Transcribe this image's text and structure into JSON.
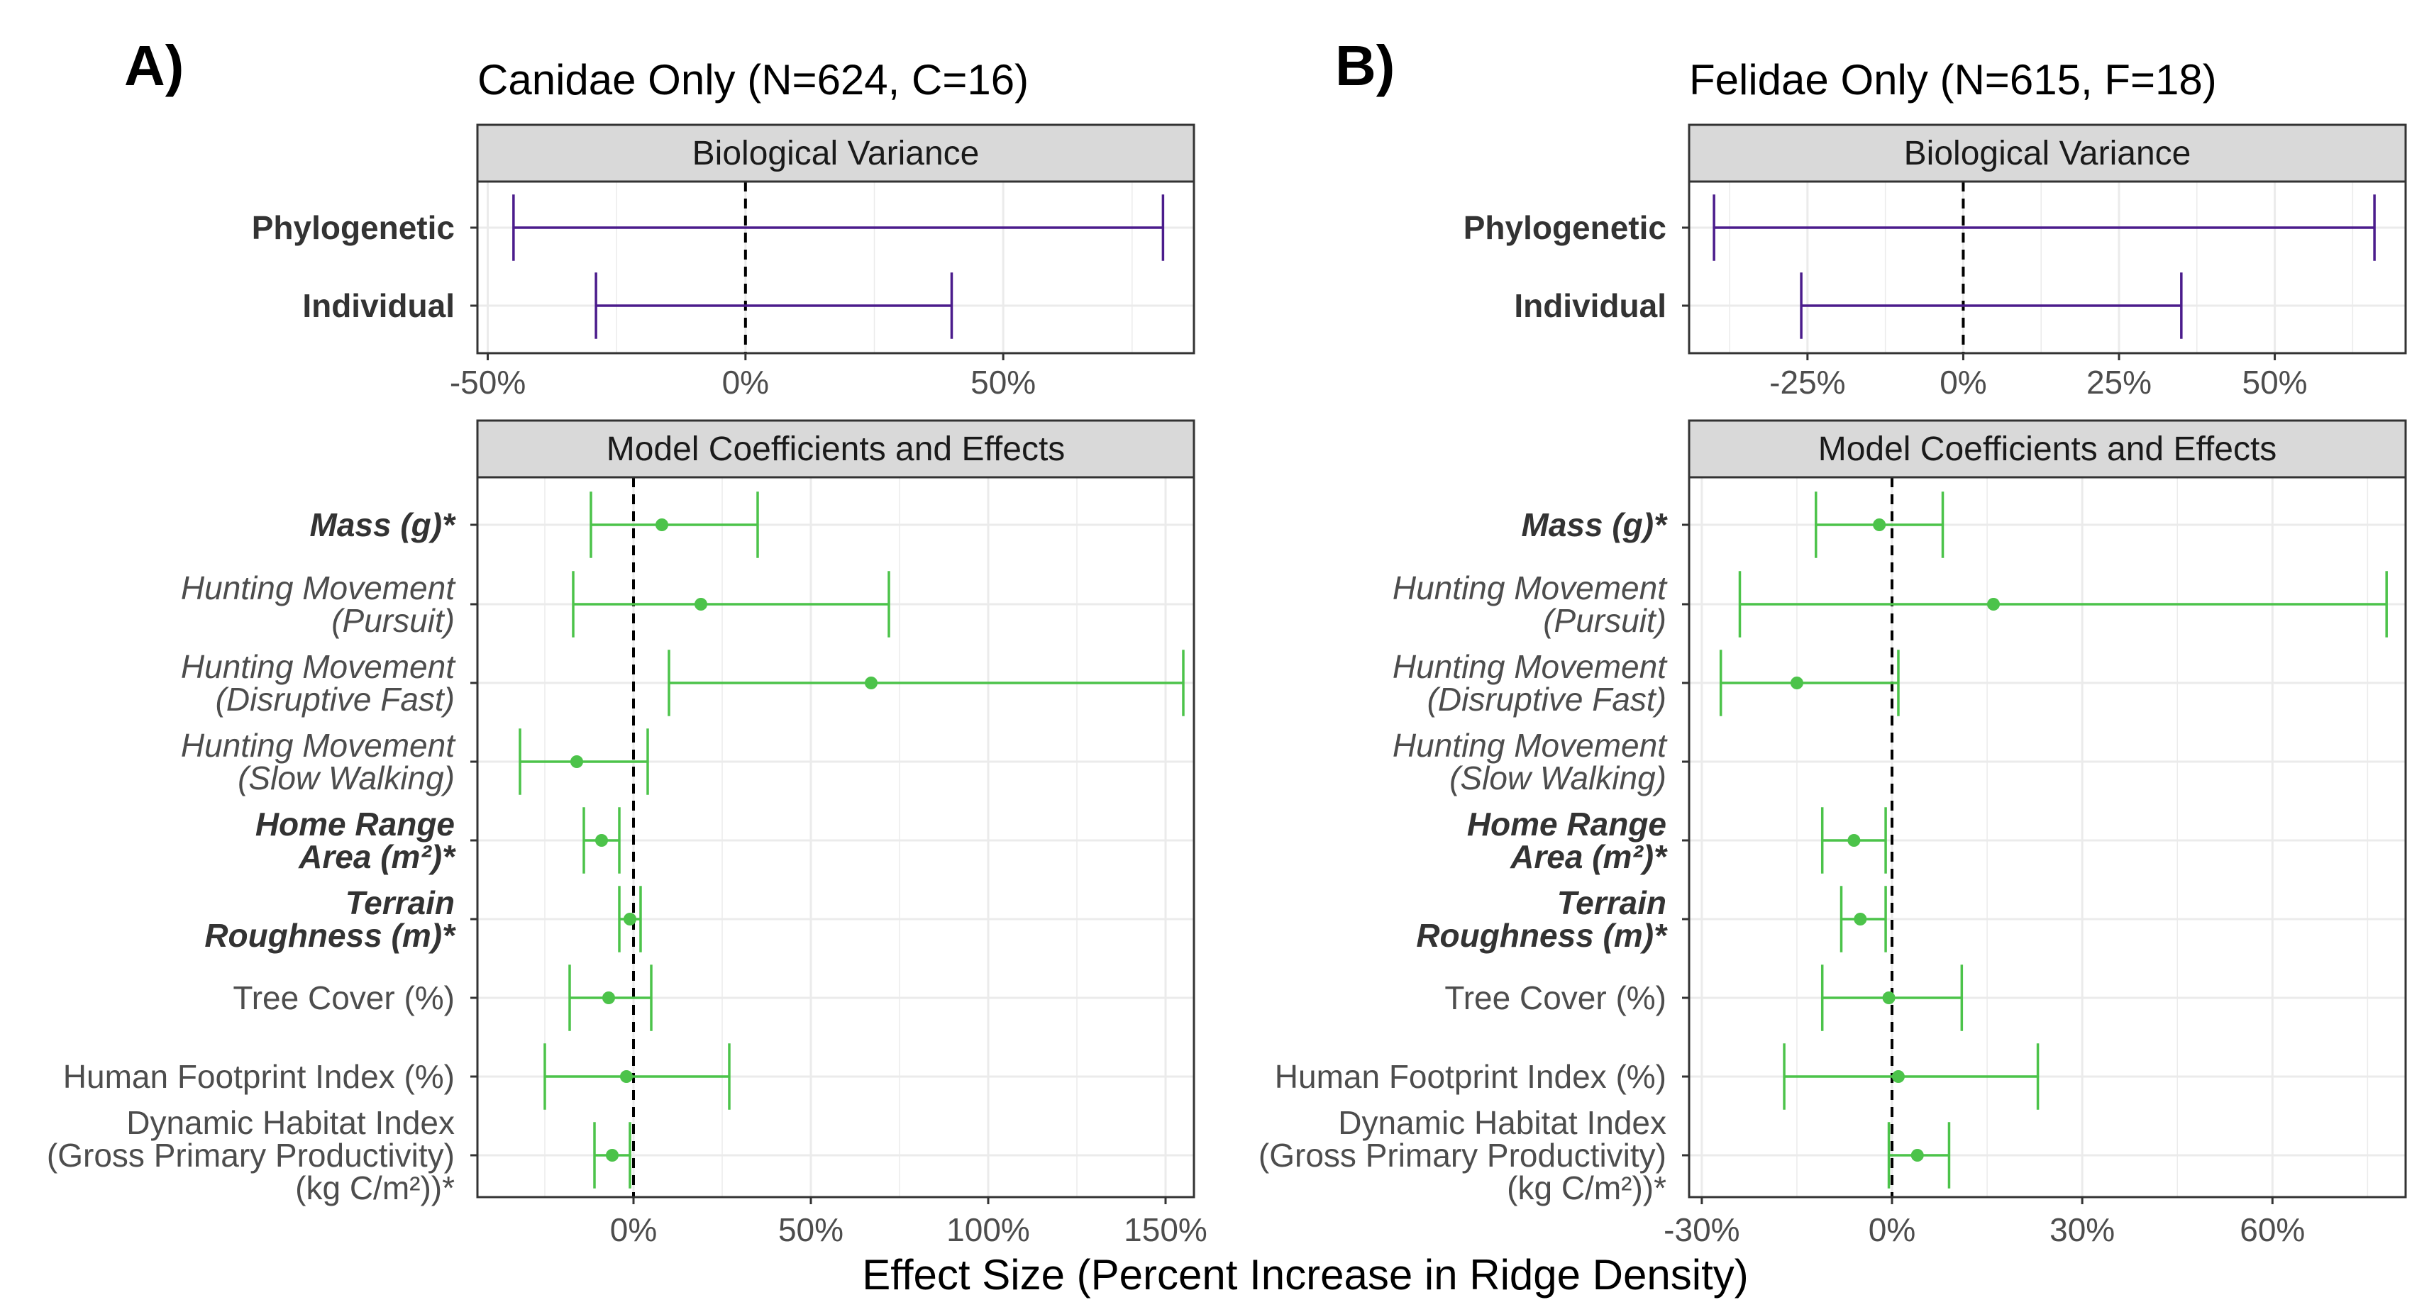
{
  "figure": {
    "xlabel": "Effect Size (Percent Increase in Ridge Density)"
  },
  "colors": {
    "variance": "#4b1c8c",
    "effects": "#4cc34a",
    "strip_fill": "#d9d9d9",
    "grid": "#ebebeb",
    "zero_line": "#000000"
  },
  "chart_data": [
    {
      "type": "interval",
      "panel": "A)",
      "title": "Canidae Only (N=624, C=16)",
      "facet": "Biological Variance",
      "xlim": [
        -52,
        87
      ],
      "xticks": [
        -50,
        0,
        50
      ],
      "tick_labels": [
        "-50%",
        "0%",
        "50%"
      ],
      "reference_line": 0,
      "rows": [
        {
          "label": [
            "Phylogenetic"
          ],
          "style": "bold",
          "low": -45,
          "high": 81
        },
        {
          "label": [
            "Individual"
          ],
          "style": "bold",
          "low": -29,
          "high": 40
        }
      ]
    },
    {
      "type": "interval",
      "panel": "A)",
      "facet": "Model Coefficients and Effects",
      "xlim": [
        -44,
        158
      ],
      "xticks": [
        0,
        50,
        100,
        150
      ],
      "tick_labels": [
        "0%",
        "50%",
        "100%",
        "150%"
      ],
      "reference_line": 0,
      "rows": [
        {
          "label": [
            "Mass (g)*"
          ],
          "style": "bold-italic",
          "low": -12,
          "estimate": 8,
          "high": 35
        },
        {
          "label": [
            "Hunting Movement",
            "(Pursuit)"
          ],
          "style": "italic",
          "low": -17,
          "estimate": 19,
          "high": 72
        },
        {
          "label": [
            "Hunting Movement",
            "(Disruptive Fast)"
          ],
          "style": "italic",
          "low": 10,
          "estimate": 67,
          "high": 155
        },
        {
          "label": [
            "Hunting Movement",
            "(Slow Walking)"
          ],
          "style": "italic",
          "low": -32,
          "estimate": -16,
          "high": 4
        },
        {
          "label": [
            "Home Range",
            "Area (m²)*"
          ],
          "style": "bold-italic",
          "low": -14,
          "estimate": -9,
          "high": -4
        },
        {
          "label": [
            "Terrain",
            "Roughness (m)*"
          ],
          "style": "bold-italic",
          "low": -4,
          "estimate": -1,
          "high": 2
        },
        {
          "label": [
            "Tree Cover (%)"
          ],
          "style": "plain",
          "low": -18,
          "estimate": -7,
          "high": 5
        },
        {
          "label": [
            "Human Footprint Index (%)"
          ],
          "style": "plain",
          "low": -25,
          "estimate": -2,
          "high": 27
        },
        {
          "label": [
            "Dynamic Habitat Index",
            "(Gross Primary Productivity)",
            "(kg C/m²))*"
          ],
          "style": "plain",
          "low": -11,
          "estimate": -6,
          "high": -1
        }
      ]
    },
    {
      "type": "interval",
      "panel": "B)",
      "title": "Felidae Only (N=615, F=18)",
      "facet": "Biological Variance",
      "xlim": [
        -44,
        71
      ],
      "xticks": [
        -25,
        0,
        25,
        50
      ],
      "tick_labels": [
        "-25%",
        "0%",
        "25%",
        "50%"
      ],
      "reference_line": 0,
      "rows": [
        {
          "label": [
            "Phylogenetic"
          ],
          "style": "bold",
          "low": -40,
          "high": 66
        },
        {
          "label": [
            "Individual"
          ],
          "style": "bold",
          "low": -26,
          "high": 35
        }
      ]
    },
    {
      "type": "interval",
      "panel": "B)",
      "facet": "Model Coefficients and Effects",
      "xlim": [
        -32,
        81
      ],
      "xticks": [
        -30,
        0,
        30,
        60
      ],
      "tick_labels": [
        "-30%",
        "0%",
        "30%",
        "60%"
      ],
      "reference_line": 0,
      "rows": [
        {
          "label": [
            "Mass (g)*"
          ],
          "style": "bold-italic",
          "low": -12,
          "estimate": -2,
          "high": 8
        },
        {
          "label": [
            "Hunting Movement",
            "(Pursuit)"
          ],
          "style": "italic",
          "low": -24,
          "estimate": 16,
          "high": 78
        },
        {
          "label": [
            "Hunting Movement",
            "(Disruptive Fast)"
          ],
          "style": "italic",
          "low": -27,
          "estimate": -15,
          "high": 1
        },
        {
          "label": [
            "Hunting Movement",
            "(Slow Walking)"
          ],
          "style": "italic"
        },
        {
          "label": [
            "Home Range",
            "Area (m²)*"
          ],
          "style": "bold-italic",
          "low": -11,
          "estimate": -6,
          "high": -1
        },
        {
          "label": [
            "Terrain",
            "Roughness (m)*"
          ],
          "style": "bold-italic",
          "low": -8,
          "estimate": -5,
          "high": -1
        },
        {
          "label": [
            "Tree Cover (%)"
          ],
          "style": "plain",
          "low": -11,
          "estimate": -0.5,
          "high": 11
        },
        {
          "label": [
            "Human Footprint Index (%)"
          ],
          "style": "plain",
          "low": -17,
          "estimate": 1,
          "high": 23
        },
        {
          "label": [
            "Dynamic Habitat Index",
            "(Gross Primary Productivity)",
            "(kg C/m²))*"
          ],
          "style": "plain",
          "low": -0.5,
          "estimate": 4,
          "high": 9
        }
      ]
    }
  ]
}
